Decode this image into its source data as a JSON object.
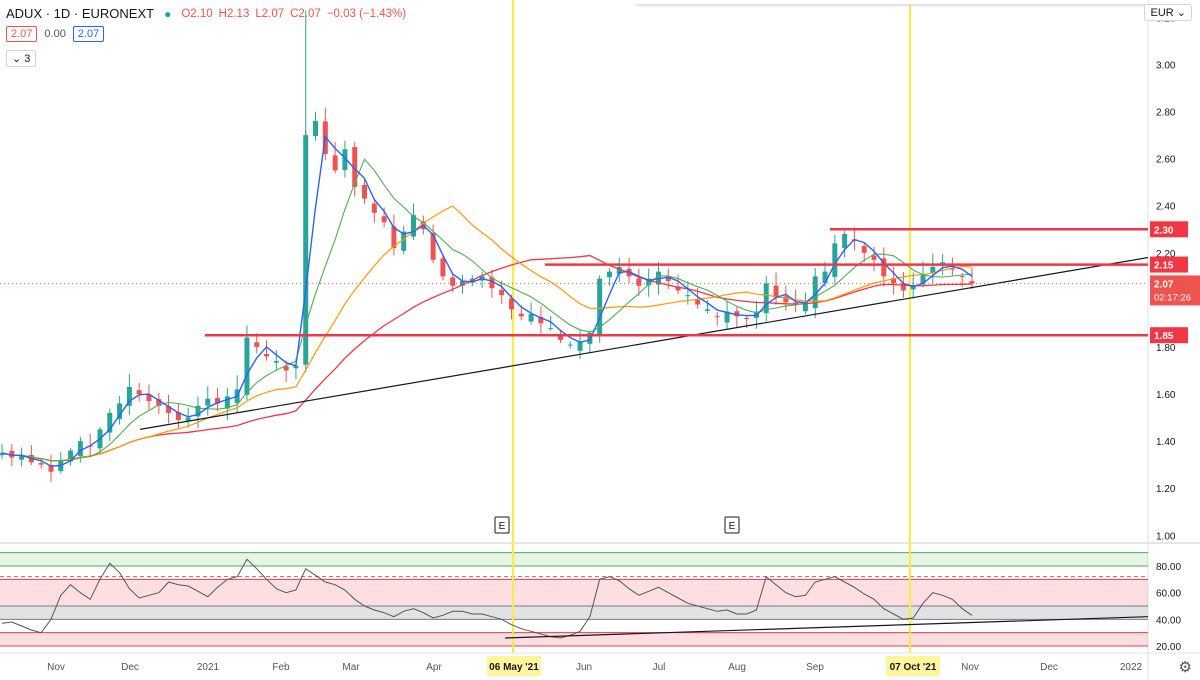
{
  "header": {
    "symbol": "ADUX · 1D · EURONEXT",
    "open": "O2.10",
    "high": "H2.13",
    "low": "L2.07",
    "close": "C2.07",
    "change": "−0.03 (−1.43%)"
  },
  "indicator_values": {
    "v1": "2.07",
    "v2": "0.00",
    "v3": "2.07",
    "collapse": "3"
  },
  "currency": "EUR",
  "colors": {
    "up": "#26a69a",
    "down": "#ef5350",
    "ma_blue": "#2962ff",
    "ma_green": "#4caf50",
    "ma_orange": "#ff9800",
    "ma_red": "#f23645",
    "level": "#f23645",
    "marker": "#ffeb3b",
    "trend": "#131722"
  },
  "chart_data": [
    {
      "type": "candlestick",
      "title": "",
      "yaxis_ticks": [
        "3.20",
        "3.00",
        "2.80",
        "2.60",
        "2.40",
        "2.20",
        "2.00",
        "1.80",
        "1.60",
        "1.40",
        "1.20",
        "1.00"
      ],
      "ylim": [
        0.98,
        3.24
      ],
      "xaxis_ticks": [
        "Nov",
        "Dec",
        "2021",
        "Feb",
        "Mar",
        "Apr",
        "06 May '21",
        "Jun",
        "Jul",
        "Aug",
        "Sep",
        "07 Oct '21",
        "Nov",
        "Dec",
        "2022"
      ],
      "current_price": "2.07",
      "countdown": "02:17:26",
      "horizontal_levels": [
        {
          "label": "2.30",
          "value": 2.3,
          "x_start": "Sep"
        },
        {
          "label": "2.15",
          "value": 2.15,
          "x_start": "May"
        },
        {
          "label": "1.85",
          "value": 1.85,
          "x_start": "Jan"
        }
      ],
      "vertical_markers": [
        "06 May '21",
        "07 Oct '21"
      ],
      "earnings_markers": [
        "E",
        "E"
      ],
      "trendline": {
        "from": [
          "Dec",
          1.45
        ],
        "to": [
          "2022",
          2.18
        ]
      },
      "close_series": [
        1.35,
        1.33,
        1.34,
        1.31,
        1.3,
        1.27,
        1.32,
        1.36,
        1.4,
        1.38,
        1.45,
        1.52,
        1.56,
        1.63,
        1.6,
        1.57,
        1.55,
        1.52,
        1.49,
        1.5,
        1.55,
        1.58,
        1.56,
        1.59,
        1.62,
        1.84,
        1.8,
        1.76,
        1.74,
        1.7,
        1.72,
        2.7,
        2.76,
        2.62,
        2.55,
        2.64,
        2.48,
        2.43,
        2.37,
        2.33,
        2.22,
        2.29,
        2.36,
        2.3,
        2.17,
        2.1,
        2.06,
        2.08,
        2.09,
        2.1,
        2.05,
        2.02,
        1.96,
        1.93,
        1.94,
        1.9,
        1.88,
        1.83,
        1.81,
        1.82,
        1.86,
        2.09,
        2.12,
        2.14,
        2.1,
        2.06,
        2.09,
        2.12,
        2.08,
        2.04,
        2.02,
        1.98,
        1.96,
        1.93,
        1.95,
        1.93,
        1.92,
        1.95,
        2.07,
        2.01,
        1.99,
        1.98,
        1.99,
        2.1,
        2.12,
        2.24,
        2.28,
        2.25,
        2.2,
        2.17,
        2.1,
        2.07,
        2.04,
        2.06,
        2.11,
        2.14,
        2.16,
        2.13,
        2.1,
        2.07
      ]
    },
    {
      "type": "line",
      "title": "",
      "yaxis_ticks": [
        "80.00",
        "60.00",
        "40.00",
        "20.00"
      ],
      "ylim": [
        17,
        95
      ],
      "bands": [
        {
          "from": 80,
          "to": 90,
          "color": "green"
        },
        {
          "from": 50,
          "to": 70,
          "color": "red"
        },
        {
          "from": 40,
          "to": 50,
          "color": "gray"
        },
        {
          "from": 20,
          "to": 30,
          "color": "red"
        }
      ],
      "values": [
        37,
        38,
        35,
        32,
        30,
        40,
        58,
        66,
        60,
        55,
        70,
        82,
        75,
        63,
        56,
        58,
        60,
        68,
        66,
        65,
        61,
        57,
        64,
        70,
        72,
        85,
        78,
        70,
        63,
        60,
        62,
        78,
        73,
        68,
        66,
        62,
        55,
        50,
        47,
        45,
        42,
        46,
        48,
        45,
        41,
        43,
        46,
        46,
        44,
        44,
        42,
        40,
        36,
        33,
        31,
        29,
        27,
        26,
        28,
        31,
        42,
        70,
        72,
        69,
        63,
        58,
        61,
        64,
        60,
        56,
        52,
        50,
        48,
        46,
        47,
        44,
        44,
        47,
        72,
        66,
        60,
        57,
        58,
        68,
        70,
        72,
        68,
        64,
        59,
        55,
        48,
        44,
        40,
        41,
        52,
        60,
        58,
        55,
        48,
        43
      ]
    }
  ]
}
